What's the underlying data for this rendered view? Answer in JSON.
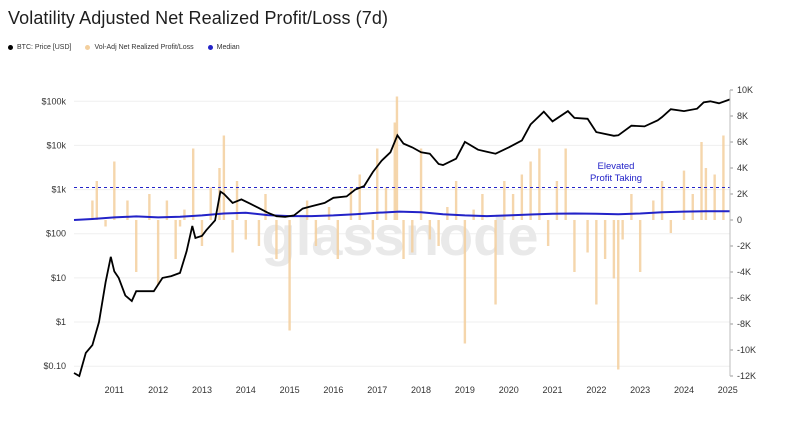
{
  "chart_data": {
    "type": "line",
    "title": "Volatility Adjusted Net Realized Profit/Loss (7d)",
    "legend": [
      {
        "name": "BTC: Price [USD]",
        "color": "#000000"
      },
      {
        "name": "Vol-Adj Net Realized Profit/Loss",
        "color": "#f3cf9e"
      },
      {
        "name": "Median",
        "color": "#2323c8"
      }
    ],
    "legend_placement": "top-left",
    "annotation": {
      "line1": "Elevated",
      "line2": "Profit Taking",
      "threshold": 2500
    },
    "watermark": "glassnode",
    "x_ticks": [
      "2011",
      "2012",
      "2013",
      "2014",
      "2015",
      "2016",
      "2017",
      "2018",
      "2019",
      "2020",
      "2021",
      "2022",
      "2023",
      "2024",
      "2025"
    ],
    "x_range": [
      2010.58,
      2025.55
    ],
    "y_left": {
      "scale": "log",
      "ticks": [
        {
          "v": 0.1,
          "label": "$0.10"
        },
        {
          "v": 1,
          "label": "$1"
        },
        {
          "v": 10,
          "label": "$10"
        },
        {
          "v": 100,
          "label": "$100"
        },
        {
          "v": 1000,
          "label": "$1k"
        },
        {
          "v": 10000,
          "label": "$10k"
        },
        {
          "v": 100000,
          "label": "$100k"
        }
      ],
      "range": [
        0.06,
        180000
      ]
    },
    "y_right": {
      "scale": "linear",
      "ticks": [
        {
          "v": -12000,
          "label": "-12K"
        },
        {
          "v": -10000,
          "label": "-10K"
        },
        {
          "v": -8000,
          "label": "-8K"
        },
        {
          "v": -6000,
          "label": "-6K"
        },
        {
          "v": -4000,
          "label": "-4K"
        },
        {
          "v": -2000,
          "label": "-2K"
        },
        {
          "v": 0,
          "label": "0"
        },
        {
          "v": 2000,
          "label": "2K"
        },
        {
          "v": 4000,
          "label": "4K"
        },
        {
          "v": 6000,
          "label": "6K"
        },
        {
          "v": 8000,
          "label": "8K"
        },
        {
          "v": 10000,
          "label": "10K"
        }
      ],
      "range": [
        -12000,
        10000
      ]
    },
    "grid": true,
    "series": [
      {
        "name": "BTC: Price [USD]",
        "axis": "left",
        "x": [
          2010.58,
          2010.7,
          2010.85,
          2011.0,
          2011.15,
          2011.3,
          2011.42,
          2011.5,
          2011.6,
          2011.75,
          2011.9,
          2012.0,
          2012.2,
          2012.4,
          2012.6,
          2012.8,
          2013.0,
          2013.15,
          2013.28,
          2013.35,
          2013.5,
          2013.6,
          2013.8,
          2013.92,
          2014.0,
          2014.2,
          2014.4,
          2014.6,
          2014.8,
          2015.0,
          2015.2,
          2015.4,
          2015.6,
          2015.8,
          2016.0,
          2016.3,
          2016.5,
          2016.8,
          2017.0,
          2017.2,
          2017.4,
          2017.6,
          2017.8,
          2017.96,
          2018.1,
          2018.3,
          2018.5,
          2018.7,
          2018.9,
          2019.0,
          2019.3,
          2019.5,
          2019.8,
          2020.0,
          2020.2,
          2020.5,
          2020.8,
          2021.0,
          2021.3,
          2021.5,
          2021.85,
          2022.0,
          2022.3,
          2022.5,
          2022.9,
          2023.0,
          2023.3,
          2023.6,
          2023.9,
          2024.0,
          2024.2,
          2024.5,
          2024.8,
          2024.95,
          2025.1,
          2025.3,
          2025.55
        ],
        "values": [
          0.07,
          0.06,
          0.2,
          0.3,
          1.0,
          8,
          30,
          14,
          10,
          4,
          3,
          5,
          5,
          5,
          10,
          11,
          13,
          40,
          150,
          80,
          90,
          120,
          200,
          900,
          800,
          500,
          600,
          480,
          380,
          300,
          250,
          240,
          260,
          370,
          420,
          500,
          650,
          700,
          1000,
          1200,
          2500,
          4500,
          7000,
          17000,
          11000,
          9000,
          7000,
          6500,
          3800,
          3600,
          5000,
          12000,
          8000,
          7200,
          6500,
          9000,
          13000,
          30000,
          58000,
          35000,
          60000,
          42000,
          40000,
          20000,
          16500,
          17000,
          28000,
          27000,
          37000,
          44000,
          66000,
          60000,
          68000,
          95000,
          100000,
          90000,
          110000
        ]
      },
      {
        "name": "Median",
        "axis": "right",
        "x": [
          2010.58,
          2011.0,
          2011.5,
          2012.0,
          2012.5,
          2013.0,
          2013.5,
          2014.0,
          2014.5,
          2015.0,
          2015.5,
          2016.0,
          2016.5,
          2017.0,
          2017.5,
          2018.0,
          2018.5,
          2019.0,
          2019.5,
          2020.0,
          2020.5,
          2021.0,
          2021.5,
          2022.0,
          2022.5,
          2023.0,
          2023.5,
          2024.0,
          2024.5,
          2025.0,
          2025.55
        ],
        "values": [
          0,
          80,
          200,
          280,
          200,
          250,
          350,
          500,
          550,
          380,
          300,
          300,
          350,
          450,
          550,
          650,
          600,
          450,
          350,
          300,
          350,
          420,
          480,
          500,
          480,
          450,
          500,
          600,
          650,
          680,
          680
        ]
      },
      {
        "name": "Vol-Adj Net Realized Profit/Loss",
        "axis": "right",
        "x": [
          2011.0,
          2011.1,
          2011.3,
          2011.5,
          2011.8,
          2012.0,
          2012.3,
          2012.5,
          2012.7,
          2012.9,
          2013.0,
          2013.1,
          2013.3,
          2013.5,
          2013.7,
          2013.9,
          2014.0,
          2014.2,
          2014.3,
          2014.5,
          2014.8,
          2014.95,
          2015.2,
          2015.5,
          2015.9,
          2016.1,
          2016.4,
          2016.6,
          2016.9,
          2017.1,
          2017.4,
          2017.5,
          2017.7,
          2017.9,
          2017.95,
          2018.1,
          2018.3,
          2018.5,
          2018.7,
          2018.9,
          2019.1,
          2019.3,
          2019.5,
          2019.7,
          2019.9,
          2020.2,
          2020.4,
          2020.6,
          2020.8,
          2021.0,
          2021.2,
          2021.4,
          2021.6,
          2021.8,
          2022.0,
          2022.3,
          2022.5,
          2022.7,
          2022.9,
          2023.0,
          2023.1,
          2023.3,
          2023.5,
          2023.8,
          2024.0,
          2024.2,
          2024.5,
          2024.7,
          2024.9,
          2025.0,
          2025.2,
          2025.4
        ],
        "values": [
          1500,
          3000,
          -500,
          4500,
          1500,
          -4000,
          2000,
          -5000,
          1500,
          -3000,
          -500,
          800,
          5500,
          -2000,
          2500,
          4000,
          6500,
          -2500,
          3000,
          -1500,
          -2000,
          2000,
          -3000,
          -8500,
          1500,
          -2000,
          1000,
          -3000,
          2500,
          3500,
          -1500,
          5500,
          2500,
          7500,
          9500,
          -3000,
          -2500,
          5500,
          -1500,
          -2000,
          1000,
          3000,
          -9500,
          800,
          2000,
          -6500,
          3000,
          2000,
          3500,
          4500,
          5500,
          -2000,
          3000,
          5500,
          -4000,
          -2500,
          -6500,
          -3000,
          -4500,
          -11500,
          -1500,
          2000,
          -4000,
          1500,
          3000,
          -1000,
          3800,
          2000,
          6000,
          4000,
          3500,
          6500
        ]
      }
    ]
  }
}
